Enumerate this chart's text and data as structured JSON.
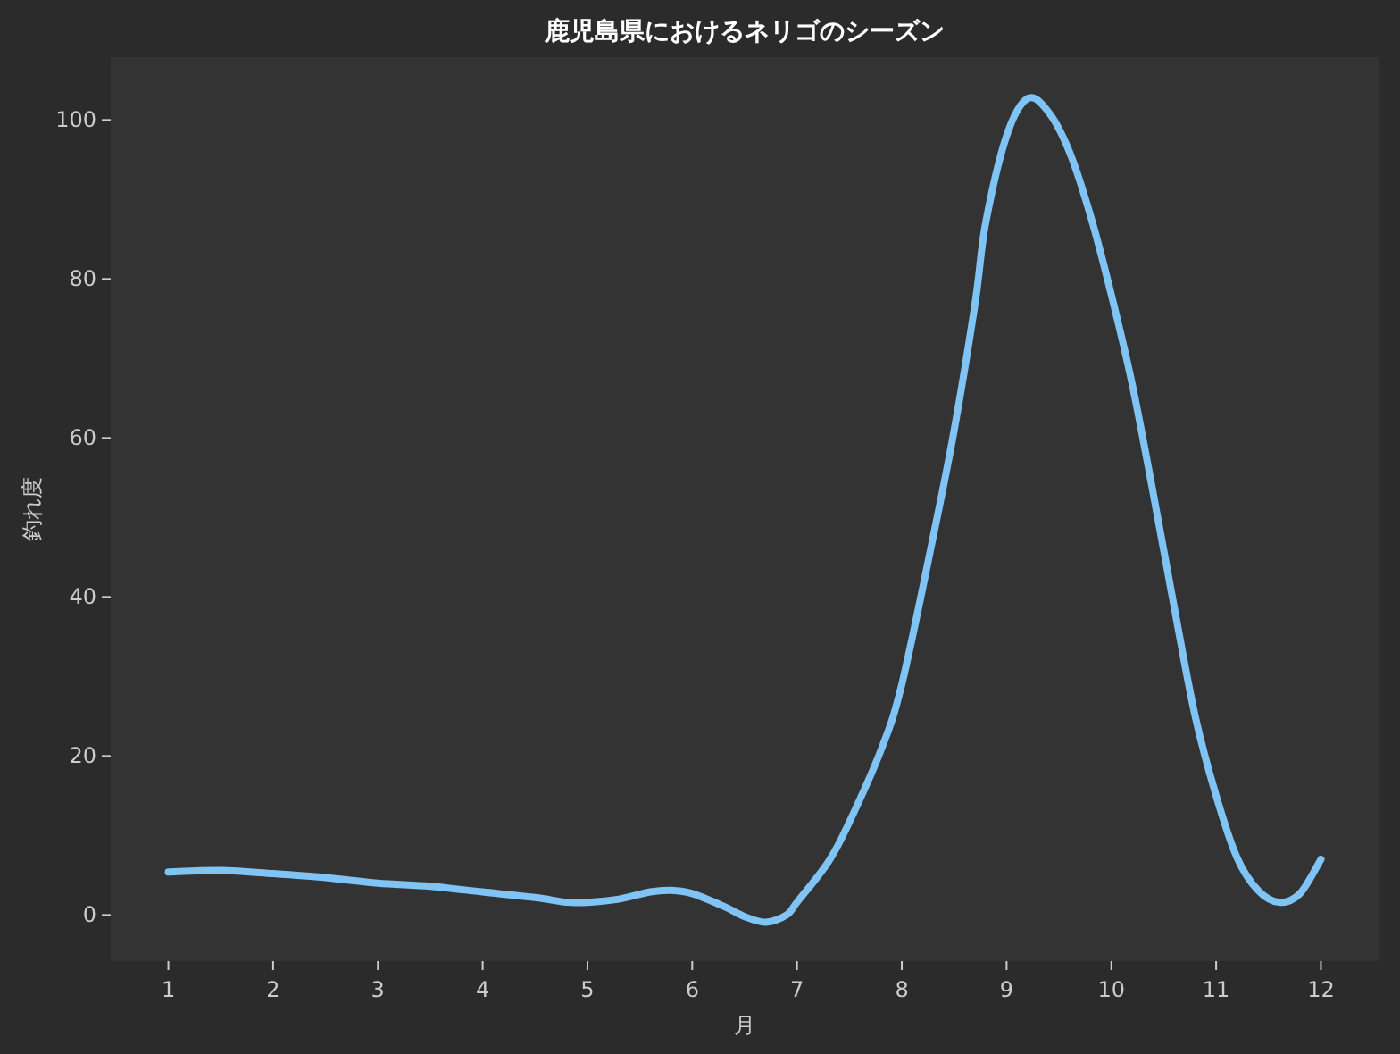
{
  "chart_data": {
    "type": "line",
    "title": "鹿児島県におけるネリゴのシーズン",
    "xlabel": "月",
    "ylabel": "釣れ度",
    "x": [
      1,
      1.5,
      2,
      2.5,
      3,
      3.5,
      4,
      4.5,
      4.8,
      5,
      5.3,
      5.6,
      5.8,
      6,
      6.3,
      6.5,
      6.7,
      6.9,
      7,
      7.3,
      7.5,
      7.8,
      8,
      8.3,
      8.5,
      8.7,
      8.8,
      9,
      9.2,
      9.4,
      9.6,
      9.8,
      10,
      10.2,
      10.4,
      10.6,
      10.8,
      11,
      11.2,
      11.4,
      11.6,
      11.8,
      12
    ],
    "series": [
      {
        "color": "#7fc4f5",
        "values": [
          5.4,
          5.6,
          5.2,
          4.7,
          4.0,
          3.6,
          2.9,
          2.2,
          1.6,
          1.6,
          2.0,
          2.9,
          3.1,
          2.7,
          1.1,
          -0.2,
          -0.9,
          0,
          1.6,
          6.7,
          11.7,
          20.7,
          29,
          47.6,
          61,
          77,
          87,
          98,
          102.7,
          101,
          96,
          88,
          78,
          66.7,
          53,
          38.7,
          25,
          15,
          7.2,
          3.1,
          1.6,
          2.7,
          7
        ]
      }
    ],
    "xlim": [
      0.45,
      12.55
    ],
    "ylim": [
      -5.8,
      107.9
    ],
    "xticks": [
      1,
      2,
      3,
      4,
      5,
      6,
      7,
      8,
      9,
      10,
      11,
      12
    ],
    "yticks": [
      0,
      20,
      40,
      60,
      80,
      100
    ],
    "line_style": "solid",
    "marker": "none"
  }
}
